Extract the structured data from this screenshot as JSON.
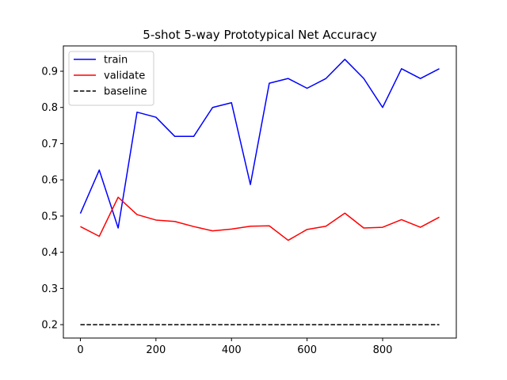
{
  "chart_data": {
    "type": "line",
    "title": "5-shot 5-way Prototypical Net Accuracy",
    "xlabel": "",
    "ylabel": "",
    "xlim": [
      -45,
      995
    ],
    "ylim": [
      0.163,
      0.97
    ],
    "xticks": [
      0,
      200,
      400,
      600,
      800
    ],
    "yticks": [
      0.2,
      0.3,
      0.4,
      0.5,
      0.6,
      0.7,
      0.8,
      0.9
    ],
    "grid": false,
    "legend_position": "top-left",
    "x": [
      0,
      50,
      100,
      150,
      200,
      250,
      300,
      350,
      400,
      450,
      500,
      550,
      600,
      650,
      700,
      750,
      800,
      850,
      900,
      950
    ],
    "series": [
      {
        "name": "train",
        "color": "#0000ff",
        "style": "solid",
        "values": [
          0.507,
          0.627,
          0.467,
          0.787,
          0.773,
          0.72,
          0.72,
          0.8,
          0.813,
          0.587,
          0.867,
          0.88,
          0.853,
          0.88,
          0.933,
          0.88,
          0.8,
          0.907,
          0.88,
          0.907
        ]
      },
      {
        "name": "validate",
        "color": "#ff0000",
        "style": "solid",
        "values": [
          0.471,
          0.444,
          0.552,
          0.504,
          0.489,
          0.485,
          0.471,
          0.459,
          0.464,
          0.472,
          0.473,
          0.433,
          0.463,
          0.472,
          0.508,
          0.467,
          0.469,
          0.49,
          0.469,
          0.497
        ]
      },
      {
        "name": "baseline",
        "color": "#000000",
        "style": "dashed",
        "values": [
          0.2,
          0.2,
          0.2,
          0.2,
          0.2,
          0.2,
          0.2,
          0.2,
          0.2,
          0.2,
          0.2,
          0.2,
          0.2,
          0.2,
          0.2,
          0.2,
          0.2,
          0.2,
          0.2,
          0.2
        ]
      }
    ]
  }
}
